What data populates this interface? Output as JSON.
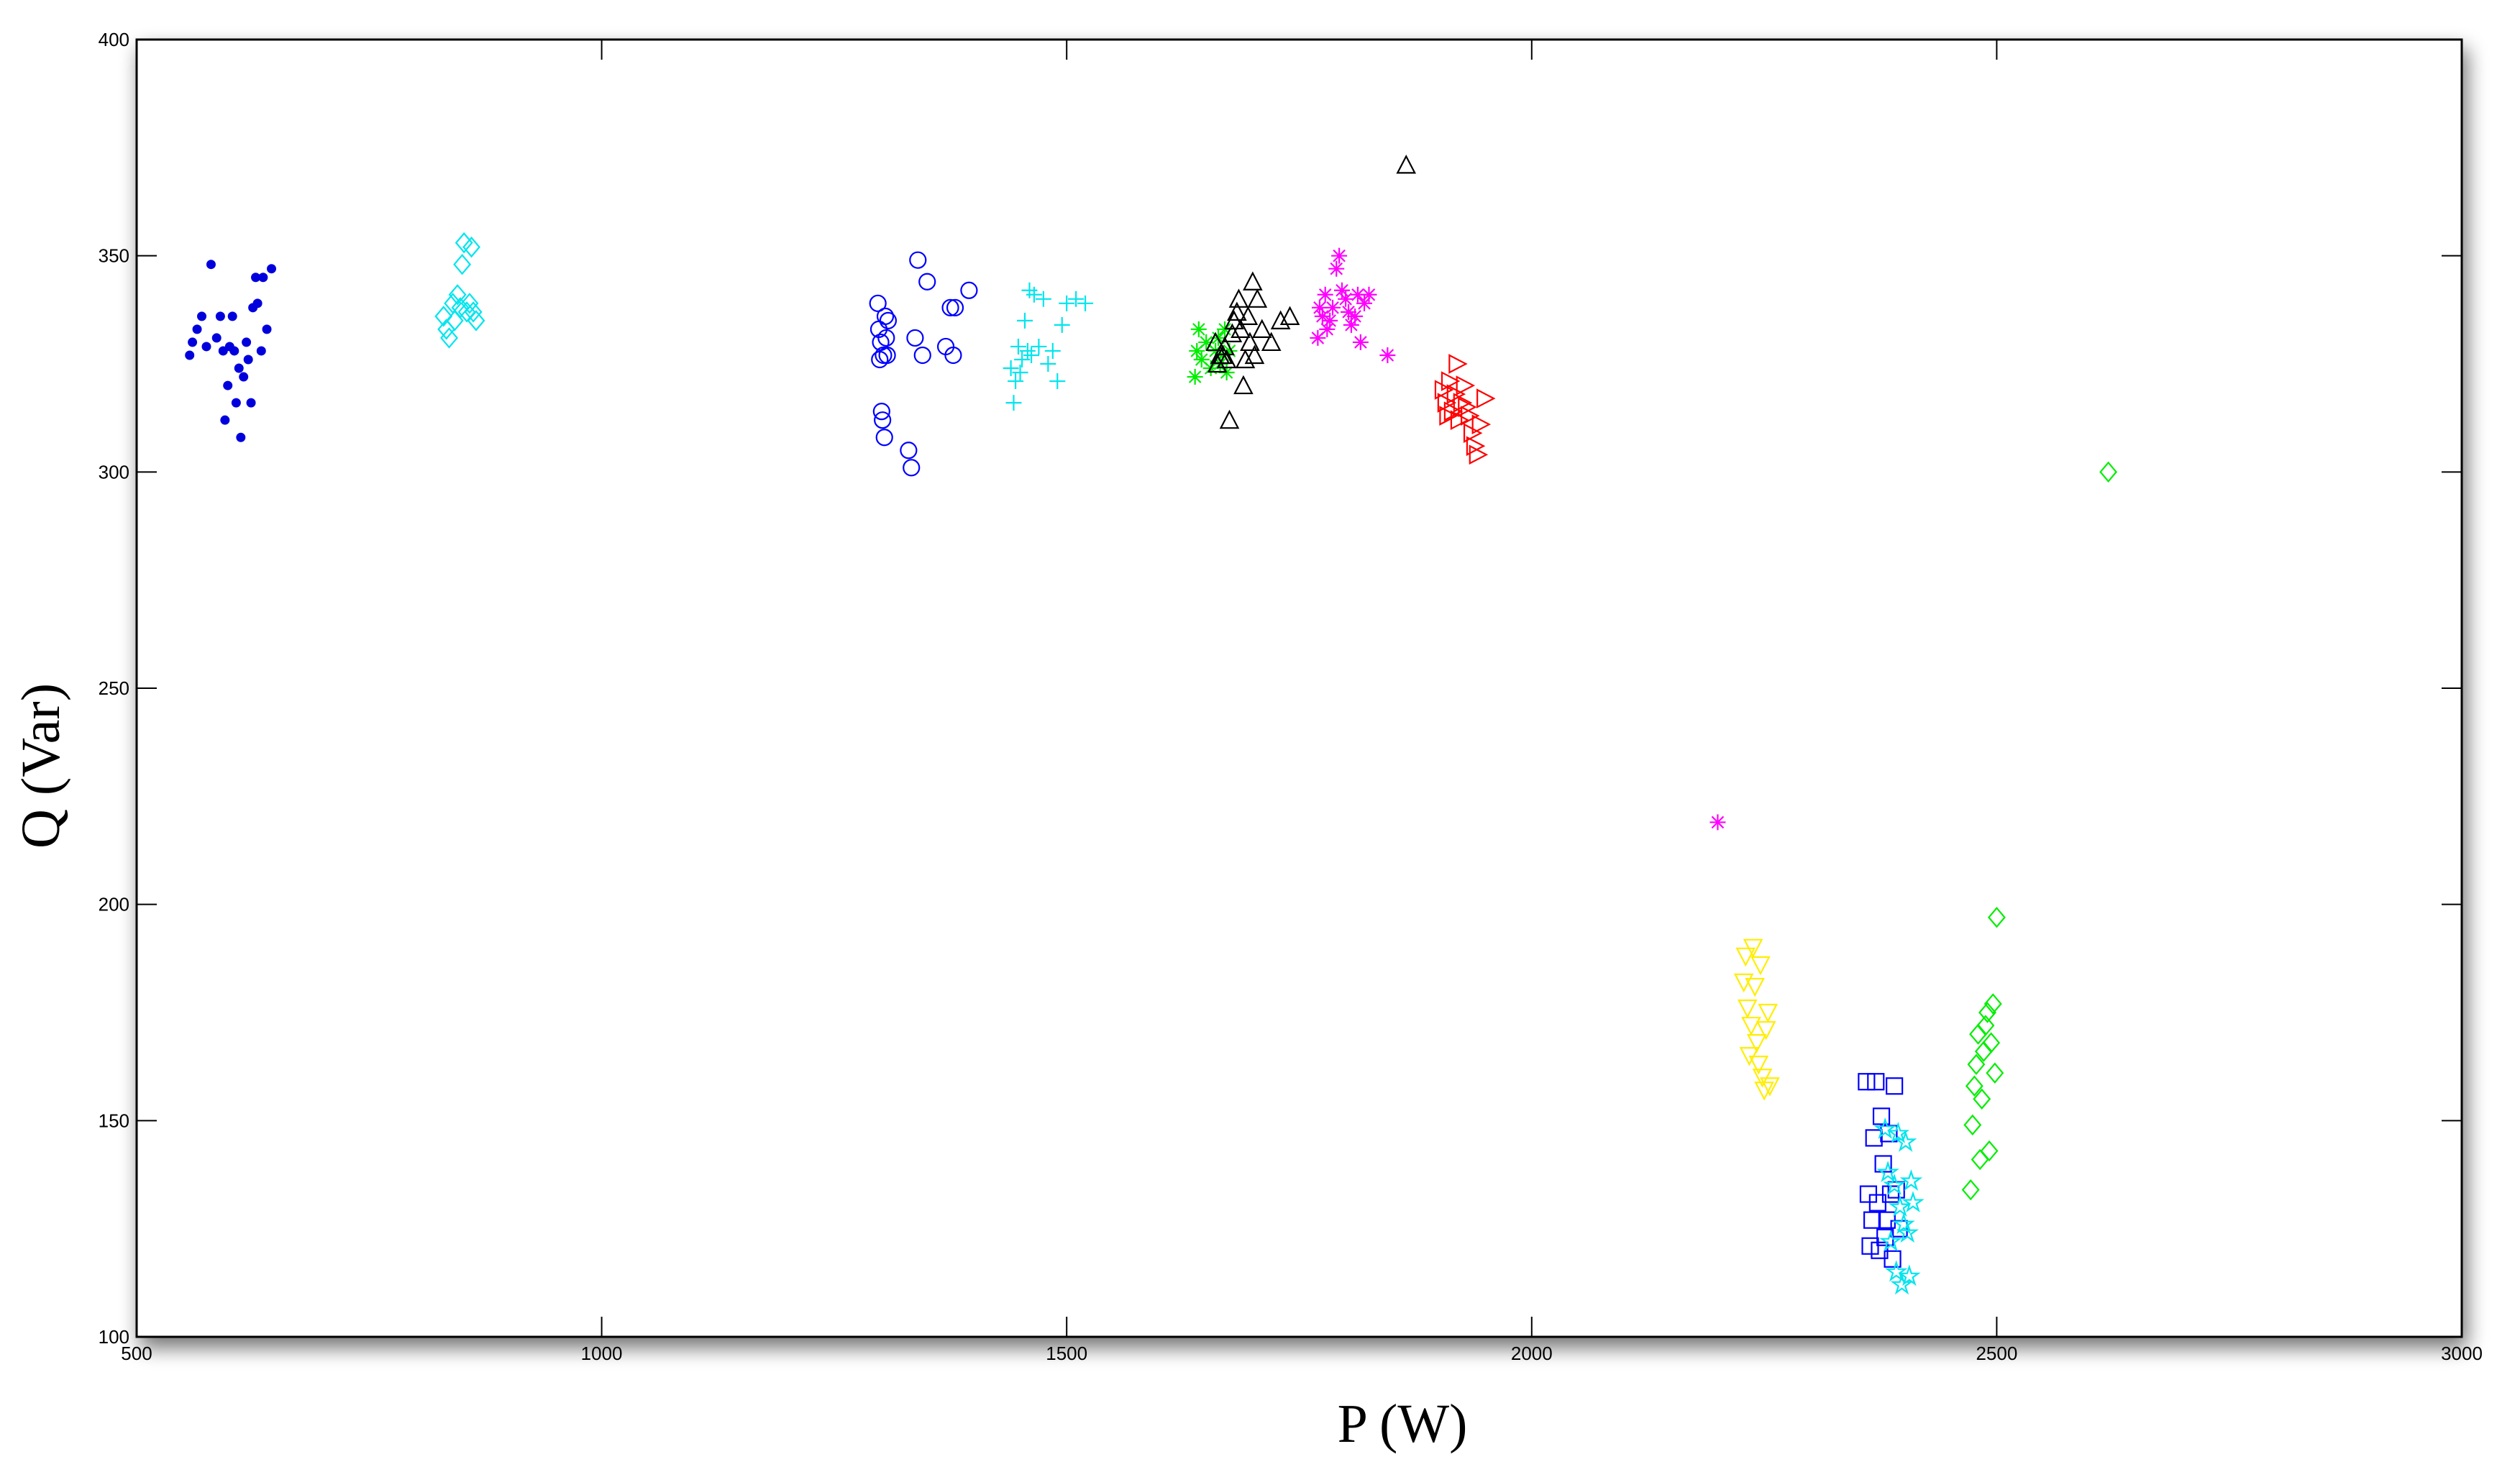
{
  "chart_data": {
    "type": "scatter",
    "title": "",
    "xlabel": "P (W)",
    "ylabel": "Q (Var)",
    "xlim": [
      500,
      3000
    ],
    "ylim": [
      100,
      400
    ],
    "xticks": [
      500,
      1000,
      1500,
      2000,
      2500,
      3000
    ],
    "yticks": [
      100,
      150,
      200,
      250,
      300,
      350,
      400
    ],
    "xtick_labels": [
      "500",
      "1000",
      "1500",
      "2000",
      "2500",
      "3000"
    ],
    "ytick_labels": [
      "100",
      "150",
      "200",
      "250",
      "300",
      "350",
      "400"
    ],
    "grid": false,
    "legend": "none",
    "series": [
      {
        "color": "#0000dd",
        "marker": "dot",
        "points": [
          [
            557,
            327
          ],
          [
            560,
            330
          ],
          [
            565,
            333
          ],
          [
            570,
            336
          ],
          [
            575,
            329
          ],
          [
            580,
            348
          ],
          [
            586,
            331
          ],
          [
            590,
            336
          ],
          [
            593,
            328
          ],
          [
            595,
            312
          ],
          [
            598,
            320
          ],
          [
            600,
            329
          ],
          [
            603,
            336
          ],
          [
            605,
            328
          ],
          [
            607,
            316
          ],
          [
            610,
            324
          ],
          [
            612,
            308
          ],
          [
            615,
            322
          ],
          [
            618,
            330
          ],
          [
            620,
            326
          ],
          [
            623,
            316
          ],
          [
            625,
            338
          ],
          [
            628,
            345
          ],
          [
            630,
            339
          ],
          [
            634,
            328
          ],
          [
            636,
            345
          ],
          [
            640,
            333
          ],
          [
            645,
            347
          ]
        ]
      },
      {
        "color": "#00e5ee",
        "marker": "diamond",
        "points": [
          [
            830,
            336
          ],
          [
            833,
            333
          ],
          [
            836,
            331
          ],
          [
            840,
            339
          ],
          [
            842,
            335
          ],
          [
            845,
            341
          ],
          [
            848,
            338
          ],
          [
            850,
            348
          ],
          [
            852,
            353
          ],
          [
            855,
            337
          ],
          [
            858,
            339
          ],
          [
            860,
            352
          ],
          [
            862,
            337
          ],
          [
            865,
            335
          ]
        ]
      },
      {
        "color": "#0000ff",
        "marker": "circle",
        "points": [
          [
            1297,
            339
          ],
          [
            1298,
            333
          ],
          [
            1299,
            326
          ],
          [
            1300,
            330
          ],
          [
            1301,
            314
          ],
          [
            1302,
            312
          ],
          [
            1303,
            327
          ],
          [
            1304,
            308
          ],
          [
            1305,
            336
          ],
          [
            1306,
            331
          ],
          [
            1307,
            327
          ],
          [
            1308,
            335
          ],
          [
            1330,
            305
          ],
          [
            1333,
            301
          ],
          [
            1337,
            331
          ],
          [
            1340,
            349
          ],
          [
            1345,
            327
          ],
          [
            1350,
            344
          ],
          [
            1370,
            329
          ],
          [
            1375,
            338
          ],
          [
            1378,
            327
          ],
          [
            1380,
            338
          ],
          [
            1395,
            342
          ]
        ]
      },
      {
        "color": "#00e5ee",
        "marker": "plus",
        "points": [
          [
            1440,
            324
          ],
          [
            1443,
            316
          ],
          [
            1445,
            321
          ],
          [
            1448,
            329
          ],
          [
            1450,
            323
          ],
          [
            1452,
            326
          ],
          [
            1455,
            335
          ],
          [
            1458,
            328
          ],
          [
            1460,
            342
          ],
          [
            1462,
            327
          ],
          [
            1465,
            341
          ],
          [
            1470,
            329
          ],
          [
            1475,
            340
          ],
          [
            1480,
            325
          ],
          [
            1485,
            328
          ],
          [
            1490,
            321
          ],
          [
            1495,
            334
          ],
          [
            1500,
            339
          ],
          [
            1510,
            340
          ],
          [
            1520,
            339
          ]
        ]
      },
      {
        "color": "#00ee00",
        "marker": "asterisk",
        "points": [
          [
            1638,
            322
          ],
          [
            1640,
            328
          ],
          [
            1642,
            333
          ],
          [
            1645,
            326
          ],
          [
            1650,
            330
          ],
          [
            1655,
            324
          ],
          [
            1660,
            328
          ],
          [
            1663,
            331
          ],
          [
            1665,
            325
          ],
          [
            1668,
            327
          ],
          [
            1670,
            333
          ],
          [
            1672,
            323
          ],
          [
            1675,
            328
          ]
        ]
      },
      {
        "color": "#000000",
        "marker": "triangle-up",
        "points": [
          [
            1660,
            330
          ],
          [
            1662,
            325
          ],
          [
            1665,
            327
          ],
          [
            1668,
            327
          ],
          [
            1670,
            329
          ],
          [
            1672,
            326
          ],
          [
            1675,
            312
          ],
          [
            1678,
            332
          ],
          [
            1680,
            335
          ],
          [
            1683,
            337
          ],
          [
            1685,
            340
          ],
          [
            1687,
            333
          ],
          [
            1690,
            320
          ],
          [
            1692,
            326
          ],
          [
            1695,
            336
          ],
          [
            1697,
            330
          ],
          [
            1700,
            344
          ],
          [
            1702,
            327
          ],
          [
            1705,
            340
          ],
          [
            1710,
            333
          ],
          [
            1720,
            330
          ],
          [
            1730,
            335
          ],
          [
            1740,
            336
          ],
          [
            1865,
            371
          ]
        ]
      },
      {
        "color": "#ff00ff",
        "marker": "asterisk",
        "points": [
          [
            1770,
            331
          ],
          [
            1772,
            338
          ],
          [
            1775,
            336
          ],
          [
            1778,
            341
          ],
          [
            1780,
            333
          ],
          [
            1783,
            335
          ],
          [
            1786,
            338
          ],
          [
            1790,
            347
          ],
          [
            1793,
            350
          ],
          [
            1796,
            342
          ],
          [
            1800,
            340
          ],
          [
            1803,
            337
          ],
          [
            1806,
            334
          ],
          [
            1810,
            336
          ],
          [
            1813,
            341
          ],
          [
            1816,
            330
          ],
          [
            1820,
            339
          ],
          [
            1825,
            341
          ],
          [
            1845,
            327
          ],
          [
            2200,
            219
          ]
        ]
      },
      {
        "color": "#ff0000",
        "marker": "triangle-right",
        "points": [
          [
            1905,
            319
          ],
          [
            1908,
            316
          ],
          [
            1910,
            313
          ],
          [
            1912,
            321
          ],
          [
            1915,
            314
          ],
          [
            1918,
            318
          ],
          [
            1920,
            325
          ],
          [
            1922,
            312
          ],
          [
            1925,
            316
          ],
          [
            1928,
            320
          ],
          [
            1930,
            315
          ],
          [
            1933,
            313
          ],
          [
            1936,
            309
          ],
          [
            1939,
            306
          ],
          [
            1942,
            304
          ],
          [
            1945,
            311
          ],
          [
            1950,
            317
          ]
        ]
      },
      {
        "color": "#ffee00",
        "marker": "triangle-down",
        "points": [
          [
            2228,
            182
          ],
          [
            2230,
            188
          ],
          [
            2232,
            176
          ],
          [
            2234,
            165
          ],
          [
            2236,
            172
          ],
          [
            2238,
            190
          ],
          [
            2240,
            181
          ],
          [
            2242,
            168
          ],
          [
            2244,
            163
          ],
          [
            2246,
            186
          ],
          [
            2248,
            160
          ],
          [
            2250,
            157
          ],
          [
            2252,
            171
          ],
          [
            2254,
            175
          ],
          [
            2256,
            158
          ]
        ]
      },
      {
        "color": "#0000ff",
        "marker": "square",
        "points": [
          [
            2360,
            159
          ],
          [
            2362,
            133
          ],
          [
            2364,
            121
          ],
          [
            2366,
            127
          ],
          [
            2368,
            146
          ],
          [
            2370,
            159
          ],
          [
            2372,
            131
          ],
          [
            2374,
            120
          ],
          [
            2376,
            151
          ],
          [
            2378,
            140
          ],
          [
            2380,
            123
          ],
          [
            2382,
            127
          ],
          [
            2384,
            147
          ],
          [
            2386,
            133
          ],
          [
            2388,
            118
          ],
          [
            2390,
            158
          ],
          [
            2392,
            134
          ],
          [
            2395,
            125
          ]
        ]
      },
      {
        "color": "#00e5ee",
        "marker": "star",
        "points": [
          [
            2380,
            148
          ],
          [
            2383,
            138
          ],
          [
            2386,
            122
          ],
          [
            2390,
            135
          ],
          [
            2392,
            115
          ],
          [
            2394,
            147
          ],
          [
            2396,
            130
          ],
          [
            2398,
            112
          ],
          [
            2400,
            126
          ],
          [
            2402,
            145
          ],
          [
            2404,
            124
          ],
          [
            2406,
            114
          ],
          [
            2408,
            136
          ],
          [
            2410,
            131
          ]
        ]
      },
      {
        "color": "#00ee00",
        "marker": "diamond",
        "points": [
          [
            2472,
            134
          ],
          [
            2474,
            149
          ],
          [
            2476,
            158
          ],
          [
            2478,
            163
          ],
          [
            2480,
            170
          ],
          [
            2482,
            141
          ],
          [
            2484,
            155
          ],
          [
            2486,
            166
          ],
          [
            2488,
            172
          ],
          [
            2490,
            175
          ],
          [
            2492,
            143
          ],
          [
            2494,
            168
          ],
          [
            2496,
            177
          ],
          [
            2498,
            161
          ],
          [
            2500,
            197
          ],
          [
            2620,
            300
          ]
        ]
      }
    ]
  }
}
